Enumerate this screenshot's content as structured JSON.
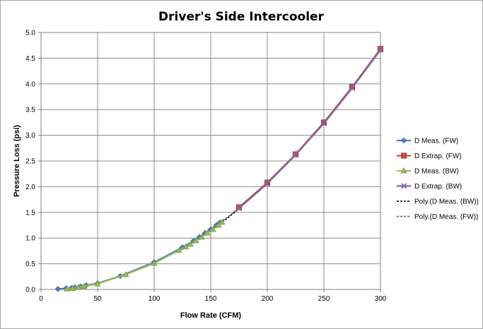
{
  "chart_data": {
    "type": "line",
    "title": "Driver's Side Intercooler",
    "xlabel": "Flow Rate (CFM)",
    "ylabel": "Pressure Loss (psi)",
    "xlim": [
      0,
      300
    ],
    "ylim": [
      0,
      5.0
    ],
    "xticks": [
      "0",
      "50",
      "100",
      "150",
      "200",
      "250",
      "300"
    ],
    "yticks": [
      "0.0",
      "0.5",
      "1.0",
      "1.5",
      "2.0",
      "2.5",
      "3.0",
      "3.5",
      "4.0",
      "4.5",
      "5.0"
    ],
    "grid": true,
    "legend": "right",
    "series": [
      {
        "name": "D Meas. (FW)",
        "color": "#4f81bd",
        "marker": "diamond",
        "x": [
          15,
          22,
          27,
          30,
          35,
          40,
          50,
          70,
          100,
          125,
          135,
          140,
          145,
          150,
          155,
          158
        ],
        "y": [
          0.01,
          0.02,
          0.03,
          0.04,
          0.06,
          0.08,
          0.12,
          0.26,
          0.53,
          0.82,
          0.95,
          1.02,
          1.1,
          1.17,
          1.25,
          1.3
        ]
      },
      {
        "name": "D Extrap. (FW)",
        "color": "#c0504d",
        "marker": "square",
        "x": [
          175,
          200,
          225,
          250,
          275,
          300
        ],
        "y": [
          1.6,
          2.08,
          2.63,
          3.25,
          3.94,
          4.68
        ]
      },
      {
        "name": "D Meas. (BW)",
        "color": "#9bbb59",
        "marker": "triangle",
        "x": [
          23,
          28,
          33,
          38,
          50,
          75,
          100,
          122,
          128,
          132,
          137,
          142,
          147,
          152,
          157,
          160
        ],
        "y": [
          0.01,
          0.02,
          0.04,
          0.06,
          0.11,
          0.29,
          0.51,
          0.76,
          0.83,
          0.88,
          0.95,
          1.02,
          1.1,
          1.17,
          1.25,
          1.31
        ]
      },
      {
        "name": "D Extrap. (BW)",
        "color": "#8064a2",
        "marker": "x",
        "x": [
          175,
          200,
          225,
          250,
          275,
          300
        ],
        "y": [
          1.58,
          2.06,
          2.62,
          3.23,
          3.92,
          4.66
        ]
      },
      {
        "name": "Poly.(D Meas. (BW))",
        "color": "#000000",
        "marker": "none",
        "dashed": true,
        "x": [
          160,
          165,
          170,
          175
        ],
        "y": [
          1.31,
          1.39,
          1.48,
          1.57
        ]
      },
      {
        "name": "Poly.(D Meas. (FW))",
        "color": "#555555",
        "marker": "none",
        "dashed": true,
        "x": [
          158,
          163,
          168,
          175
        ],
        "y": [
          1.3,
          1.38,
          1.46,
          1.59
        ]
      }
    ]
  }
}
